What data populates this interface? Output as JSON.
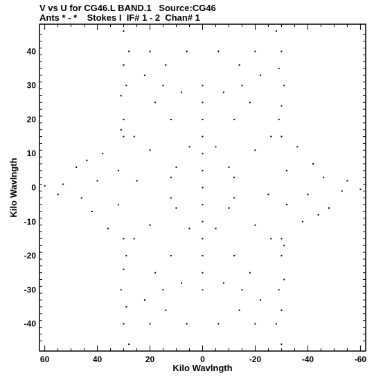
{
  "chart_data": {
    "type": "scatter",
    "title": "V vs U for CG46.L BAND.1   Source:CG46",
    "subtitle": "Ants * - *    Stokes I  IF# 1 - 2  Chan# 1",
    "xlabel": "Kilo Wavlngth",
    "ylabel": "Kilo Wavlngth",
    "xlim": [
      62,
      -62
    ],
    "ylim": [
      -48,
      48
    ],
    "xticks": [
      60,
      40,
      20,
      0,
      -20,
      -40,
      -60
    ],
    "yticks": [
      40,
      30,
      20,
      10,
      0,
      -10,
      -20,
      -30,
      -40
    ],
    "grid": false,
    "series": [
      {
        "values": [
          [
            0,
            0
          ],
          [
            0,
            5
          ],
          [
            0,
            10
          ],
          [
            0,
            15
          ],
          [
            0,
            20
          ],
          [
            0,
            25
          ],
          [
            0,
            30
          ],
          [
            0,
            -5
          ],
          [
            0,
            -10
          ],
          [
            0,
            -15
          ],
          [
            0,
            -20
          ],
          [
            0,
            -25
          ],
          [
            0,
            -30
          ],
          [
            10,
            6
          ],
          [
            20,
            11
          ],
          [
            26,
            15
          ],
          [
            -10,
            -6
          ],
          [
            -20,
            -11
          ],
          [
            -26,
            -15
          ],
          [
            -10,
            6
          ],
          [
            -20,
            11
          ],
          [
            -26,
            15
          ],
          [
            10,
            -6
          ],
          [
            20,
            -11
          ],
          [
            26,
            -15
          ],
          [
            30,
            46
          ],
          [
            28,
            40
          ],
          [
            30,
            36
          ],
          [
            29,
            30
          ],
          [
            31,
            27
          ],
          [
            30,
            20
          ],
          [
            31,
            17
          ],
          [
            30,
            15
          ],
          [
            -30,
            -46
          ],
          [
            -28,
            -40
          ],
          [
            -30,
            -36
          ],
          [
            -29,
            -30
          ],
          [
            -31,
            -27
          ],
          [
            -30,
            -20
          ],
          [
            -31,
            -17
          ],
          [
            -30,
            -15
          ],
          [
            -28,
            46
          ],
          [
            -30,
            40
          ],
          [
            -29,
            35
          ],
          [
            -31,
            30
          ],
          [
            -30,
            24
          ],
          [
            -29,
            20
          ],
          [
            -30,
            15
          ],
          [
            28,
            -46
          ],
          [
            30,
            -40
          ],
          [
            29,
            -35
          ],
          [
            31,
            -30
          ],
          [
            30,
            -24
          ],
          [
            29,
            -20
          ],
          [
            30,
            -15
          ],
          [
            60,
            0.5
          ],
          [
            53,
            1
          ],
          [
            55,
            -2
          ],
          [
            48,
            6
          ],
          [
            46,
            -3
          ],
          [
            44,
            8
          ],
          [
            42,
            -7
          ],
          [
            38,
            10
          ],
          [
            36,
            -12
          ],
          [
            -60,
            -0.5
          ],
          [
            -53,
            -1
          ],
          [
            -55,
            2
          ],
          [
            -48,
            -6
          ],
          [
            -46,
            3
          ],
          [
            -44,
            -8
          ],
          [
            -42,
            7
          ],
          [
            -38,
            -10
          ],
          [
            -36,
            12
          ],
          [
            15,
            30
          ],
          [
            12,
            20
          ],
          [
            8,
            28
          ],
          [
            18,
            25
          ],
          [
            22,
            33
          ],
          [
            14,
            36
          ],
          [
            6,
            40
          ],
          [
            20,
            40
          ],
          [
            -15,
            -30
          ],
          [
            -12,
            -20
          ],
          [
            -8,
            -28
          ],
          [
            -18,
            -25
          ],
          [
            -22,
            -33
          ],
          [
            -14,
            -36
          ],
          [
            -6,
            -40
          ],
          [
            -20,
            -40
          ],
          [
            -15,
            30
          ],
          [
            -12,
            20
          ],
          [
            -8,
            28
          ],
          [
            -18,
            25
          ],
          [
            -22,
            33
          ],
          [
            -14,
            36
          ],
          [
            -6,
            40
          ],
          [
            -20,
            40
          ],
          [
            15,
            -30
          ],
          [
            12,
            -20
          ],
          [
            8,
            -28
          ],
          [
            18,
            -25
          ],
          [
            22,
            -33
          ],
          [
            14,
            -36
          ],
          [
            6,
            -40
          ],
          [
            20,
            -40
          ],
          [
            5,
            12
          ],
          [
            -5,
            12
          ],
          [
            5,
            -12
          ],
          [
            -5,
            -12
          ],
          [
            12,
            3
          ],
          [
            -12,
            3
          ],
          [
            12,
            -3
          ],
          [
            -12,
            -3
          ],
          [
            32,
            5
          ],
          [
            -32,
            5
          ],
          [
            32,
            -5
          ],
          [
            -32,
            -5
          ],
          [
            25,
            2
          ],
          [
            -25,
            -2
          ],
          [
            40,
            2
          ],
          [
            -40,
            -2
          ]
        ]
      }
    ]
  },
  "axis_text": {
    "x_ticks": [
      "60",
      "40",
      "20",
      "0",
      "-20",
      "-40",
      "-60"
    ],
    "y_ticks": [
      "40",
      "30",
      "20",
      "10",
      "0",
      "-10",
      "-20",
      "-30",
      "-40"
    ]
  }
}
